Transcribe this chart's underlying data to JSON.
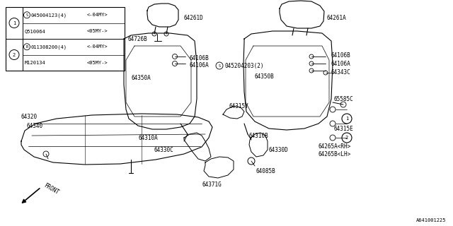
{
  "bg_color": "#ffffff",
  "title_bottom": "A641001225",
  "parts_table": {
    "row1_part1": "045004123(4)",
    "row1_cond1": "<-04MY>",
    "row1_part2": "Q510064",
    "row1_cond2": "<05MY->",
    "row2_part1": "011308200(4)",
    "row2_cond1": "<-04MY>",
    "row2_part2": "M120134",
    "row2_cond2": "<05MY->"
  }
}
